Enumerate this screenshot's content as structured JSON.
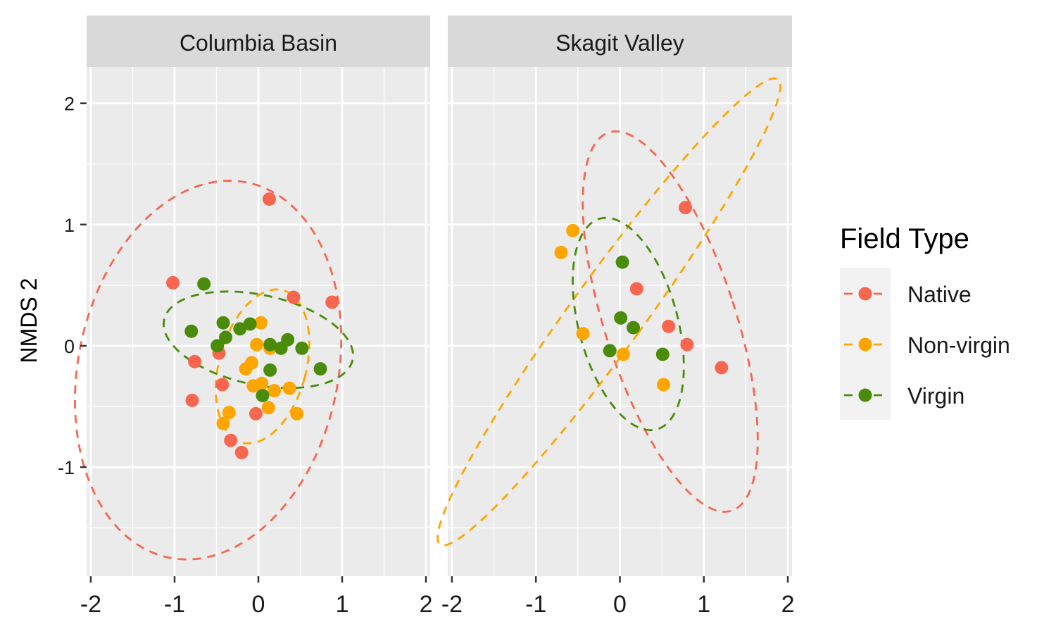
{
  "chart_data": {
    "type": "scatter",
    "xlabel": "",
    "ylabel": "NMDS 2",
    "xlim": [
      -2.05,
      2.05
    ],
    "ylim": [
      -1.9,
      2.3
    ],
    "x_ticks": [
      -2,
      -1,
      0,
      1,
      2
    ],
    "x_tick_labels": [
      "-2",
      "-1",
      "0",
      "1",
      "2"
    ],
    "y_ticks": [
      -1,
      0,
      1,
      2
    ],
    "y_tick_labels": [
      "-1",
      "0",
      "1",
      "2"
    ],
    "grid": true,
    "legend": {
      "title": "Field Type",
      "placement": "right",
      "entries": [
        "Native",
        "Non-virgin",
        "Virgin"
      ]
    },
    "colors": {
      "Native": "#f8664f",
      "Non-virgin": "#ffa500",
      "Virgin": "#4a8c0a",
      "panel_bg": "#ebebeb",
      "strip_bg": "#d9d9d9",
      "grid": "#ffffff"
    },
    "panels": [
      {
        "title": "Columbia Basin",
        "series": [
          {
            "name": "Native",
            "points": [
              [
                0.13,
                1.21
              ],
              [
                -1.02,
                0.52
              ],
              [
                0.42,
                0.4
              ],
              [
                0.88,
                0.36
              ],
              [
                -0.47,
                -0.06
              ],
              [
                -0.76,
                -0.13
              ],
              [
                -0.43,
                -0.32
              ],
              [
                -0.79,
                -0.45
              ],
              [
                -0.03,
                -0.56
              ],
              [
                -0.33,
                -0.78
              ],
              [
                -0.2,
                -0.88
              ]
            ],
            "ellipse": {
              "cx": -0.6,
              "cy": -0.2,
              "rx": 1.55,
              "ry": 1.58,
              "angle": 12
            }
          },
          {
            "name": "Non-virgin",
            "points": [
              [
                0.03,
                0.19
              ],
              [
                -0.02,
                0.01
              ],
              [
                0.14,
                -0.02
              ],
              [
                -0.08,
                -0.14
              ],
              [
                -0.15,
                -0.19
              ],
              [
                -0.06,
                -0.33
              ],
              [
                0.04,
                -0.31
              ],
              [
                0.19,
                -0.37
              ],
              [
                0.37,
                -0.35
              ],
              [
                0.12,
                -0.51
              ],
              [
                0.46,
                -0.56
              ],
              [
                -0.35,
                -0.55
              ],
              [
                -0.42,
                -0.64
              ]
            ],
            "ellipse": {
              "cx": 0.05,
              "cy": -0.17,
              "rx": 0.52,
              "ry": 0.65,
              "angle": 15
            }
          },
          {
            "name": "Virgin",
            "points": [
              [
                -0.65,
                0.51
              ],
              [
                -0.8,
                0.12
              ],
              [
                -0.42,
                0.19
              ],
              [
                -0.22,
                0.14
              ],
              [
                -0.1,
                0.18
              ],
              [
                -0.49,
                0.0
              ],
              [
                -0.39,
                0.07
              ],
              [
                0.14,
                0.01
              ],
              [
                0.35,
                0.05
              ],
              [
                0.27,
                -0.02
              ],
              [
                0.52,
                -0.02
              ],
              [
                0.14,
                -0.2
              ],
              [
                0.74,
                -0.19
              ],
              [
                0.05,
                -0.41
              ]
            ],
            "ellipse": {
              "cx": 0.0,
              "cy": 0.05,
              "rx": 1.15,
              "ry": 0.37,
              "angle": 12
            }
          }
        ]
      },
      {
        "title": "Skagit Valley",
        "series": [
          {
            "name": "Native",
            "points": [
              [
                0.78,
                1.14
              ],
              [
                0.2,
                0.47
              ],
              [
                0.58,
                0.16
              ],
              [
                0.8,
                0.01
              ],
              [
                1.21,
                -0.18
              ]
            ],
            "ellipse": {
              "cx": 0.6,
              "cy": 0.2,
              "rx": 0.78,
              "ry": 1.64,
              "angle": -18
            }
          },
          {
            "name": "Non-virgin",
            "points": [
              [
                -0.56,
                0.95
              ],
              [
                -0.7,
                0.77
              ],
              [
                -0.44,
                0.1
              ],
              [
                0.04,
                -0.07
              ],
              [
                0.52,
                -0.32
              ]
            ],
            "ellipse": {
              "cx": -0.13,
              "cy": 0.28,
              "rx": 0.43,
              "ry": 2.37,
              "angle": 36
            }
          },
          {
            "name": "Virgin",
            "points": [
              [
                0.03,
                0.69
              ],
              [
                0.01,
                0.23
              ],
              [
                0.16,
                0.15
              ],
              [
                -0.12,
                -0.04
              ],
              [
                0.51,
                -0.07
              ]
            ],
            "ellipse": {
              "cx": 0.1,
              "cy": 0.18,
              "rx": 0.59,
              "ry": 0.9,
              "angle": -15
            }
          }
        ]
      }
    ]
  }
}
